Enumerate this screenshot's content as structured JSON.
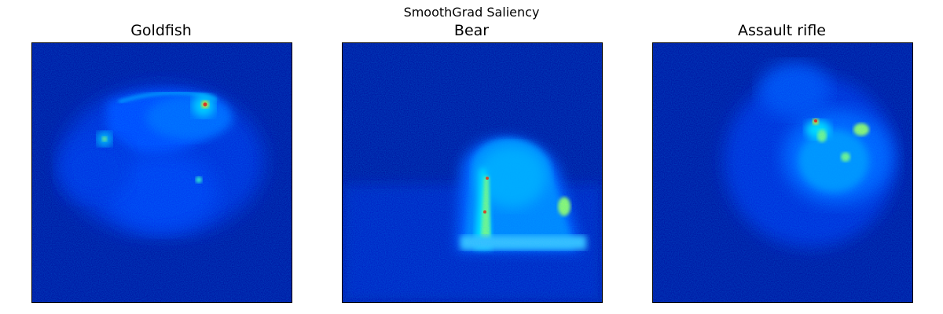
{
  "figure": {
    "title": "SmoothGrad Saliency",
    "colormap": "jet",
    "background_color": "#00008b",
    "panels": [
      {
        "title": "Goldfish"
      },
      {
        "title": "Bear"
      },
      {
        "title": "Assault rifle"
      }
    ]
  }
}
